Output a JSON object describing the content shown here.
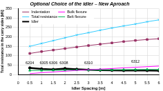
{
  "chart_data": {
    "type": "line",
    "title": "Optional Choice of the idler – New Aproach",
    "x_label": "Idler Spacing [m]",
    "y_label": "Total resistance in the carry sides [kN]",
    "x": [
      0.5,
      1,
      1.5,
      2,
      2.5,
      3,
      3.5,
      4,
      4.5,
      5,
      5.5,
      6
    ],
    "series": [
      {
        "name": "Indentation",
        "color": "#993366",
        "marker": "square",
        "line_style": "solid",
        "values": [
          112,
          122,
          130,
          138,
          146,
          154,
          161,
          168,
          175,
          181,
          186,
          190
        ]
      },
      {
        "name": "Bulk flexure",
        "color": "#ff00ff",
        "marker": "none",
        "line_style": "solid",
        "values": [
          5,
          10,
          14,
          18,
          22,
          26,
          29,
          32,
          36,
          39,
          42,
          45
        ]
      },
      {
        "name": "Total resistance",
        "color": "#33ccff",
        "marker": "x",
        "line_style": "solid",
        "values": [
          150,
          165,
          180,
          195,
          210,
          222,
          235,
          247,
          258,
          268,
          280,
          290
        ]
      },
      {
        "name": "Belt flexure",
        "color": "#00b050",
        "marker": "triangle",
        "line_style": "solid",
        "values": [
          22,
          22,
          23,
          23,
          24,
          24,
          25,
          25,
          26,
          26,
          27,
          27
        ]
      },
      {
        "name": "Idler",
        "color": "#000000",
        "marker": "circle",
        "line_style": "thick",
        "values": [
          35,
          30,
          27,
          32,
          28,
          25,
          24,
          23,
          22,
          23,
          22,
          21
        ]
      }
    ],
    "annotations": [
      {
        "text": "6204",
        "x": 0.5,
        "y": 52
      },
      {
        "text": "6305",
        "x": 1.1,
        "y": 52
      },
      {
        "text": "6306",
        "x": 1.5,
        "y": 52
      },
      {
        "text": "6308",
        "x": 1.95,
        "y": 52
      },
      {
        "text": "6310",
        "x": 3.0,
        "y": 52
      },
      {
        "text": "6312",
        "x": 5.0,
        "y": 58
      }
    ],
    "xlim": [
      0,
      6
    ],
    "xticks": [
      0,
      0.5,
      1,
      1.5,
      2,
      2.5,
      3,
      3.5,
      4,
      4.5,
      5,
      5.5,
      6
    ],
    "ylim": [
      0,
      350
    ],
    "yticks": [
      0,
      50,
      100,
      150,
      200,
      250,
      300,
      350
    ],
    "grid": true,
    "legend": "upper left"
  }
}
